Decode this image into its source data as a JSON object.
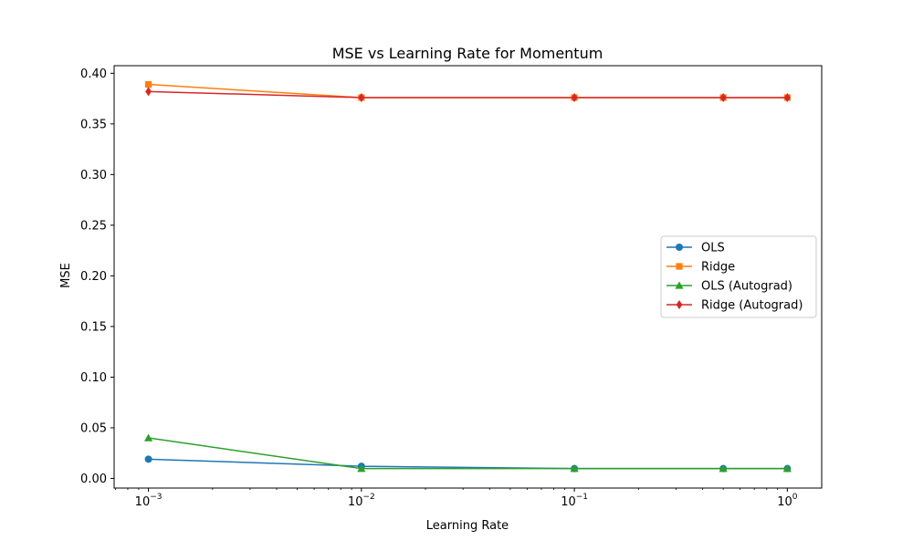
{
  "chart_data": {
    "type": "line",
    "title": "MSE vs Learning Rate for Momentum",
    "xlabel": "Learning Rate",
    "ylabel": "MSE",
    "xscale": "log",
    "x": [
      0.001,
      0.01,
      0.1,
      0.5,
      1.0
    ],
    "xlim": [
      0.00069,
      1.45
    ],
    "ylim": [
      -0.0095,
      0.4075
    ],
    "xticks": [
      {
        "value": 0.001,
        "base": "10",
        "exp": "−3"
      },
      {
        "value": 0.01,
        "base": "10",
        "exp": "−2"
      },
      {
        "value": 0.1,
        "base": "10",
        "exp": "−1"
      },
      {
        "value": 1.0,
        "base": "10",
        "exp": "0"
      }
    ],
    "yticks": [
      {
        "value": 0.0,
        "label": "0.00"
      },
      {
        "value": 0.05,
        "label": "0.05"
      },
      {
        "value": 0.1,
        "label": "0.10"
      },
      {
        "value": 0.15,
        "label": "0.15"
      },
      {
        "value": 0.2,
        "label": "0.20"
      },
      {
        "value": 0.25,
        "label": "0.25"
      },
      {
        "value": 0.3,
        "label": "0.30"
      },
      {
        "value": 0.35,
        "label": "0.35"
      },
      {
        "value": 0.4,
        "label": "0.40"
      }
    ],
    "grid": false,
    "legend_position": "center-right",
    "series": [
      {
        "name": "OLS",
        "color": "#1f77b4",
        "marker": "circle",
        "values": [
          0.019,
          0.012,
          0.0097,
          0.0097,
          0.0097
        ]
      },
      {
        "name": "Ridge",
        "color": "#ff7f0e",
        "marker": "square",
        "values": [
          0.389,
          0.376,
          0.376,
          0.376,
          0.376
        ]
      },
      {
        "name": "OLS (Autograd)",
        "color": "#2ca02c",
        "marker": "triangle",
        "values": [
          0.04,
          0.0097,
          0.0097,
          0.0097,
          0.0097
        ]
      },
      {
        "name": "Ridge (Autograd)",
        "color": "#d62728",
        "marker": "diamond",
        "values": [
          0.382,
          0.376,
          0.376,
          0.376,
          0.376
        ]
      }
    ]
  }
}
